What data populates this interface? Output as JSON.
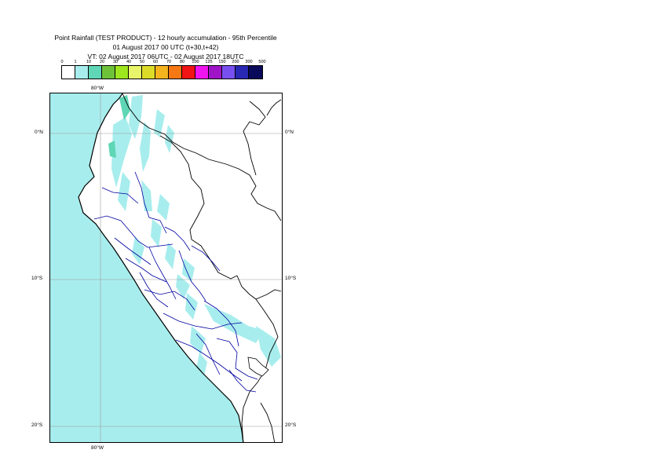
{
  "title": {
    "line1": "Point Rainfall (TEST PRODUCT) - 12 hourly accumulation - 95th Percentile",
    "line2": "01 August 2017 00 UTC (t+30,t+42)",
    "line3": "VT: 02 August 2017 06UTC - 02 August 2017 18UTC"
  },
  "legend": {
    "labels": [
      "0",
      "1",
      "10",
      "20",
      "30",
      "40",
      "50",
      "60",
      "70",
      "80",
      "100",
      "125",
      "150",
      "200",
      "300",
      "500"
    ],
    "colors": [
      "#ffffff",
      "#a8eded",
      "#5fd6b5",
      "#6ec23a",
      "#9ee61e",
      "#e8f56a",
      "#dcdc28",
      "#f5b41e",
      "#f57814",
      "#f01414",
      "#f014f0",
      "#a014c8",
      "#7850f0",
      "#2828b4",
      "#0a0a5a"
    ]
  },
  "map": {
    "sea_color": "#a8eded",
    "rain_color": "#a8eded",
    "heavy_rain_color": "#5fd6b5",
    "border_color": "#000000",
    "region_border_color": "#0000a0",
    "lat_labels": {
      "lat0_right": "0°N",
      "lat0_left": "0°N",
      "lat10_right": "10°S",
      "lat10_left": "10°S",
      "lat20_right": "20°S",
      "lat20_left": "20°S"
    },
    "lon_labels": {
      "top": "80°W",
      "bottom": "80°W"
    }
  }
}
